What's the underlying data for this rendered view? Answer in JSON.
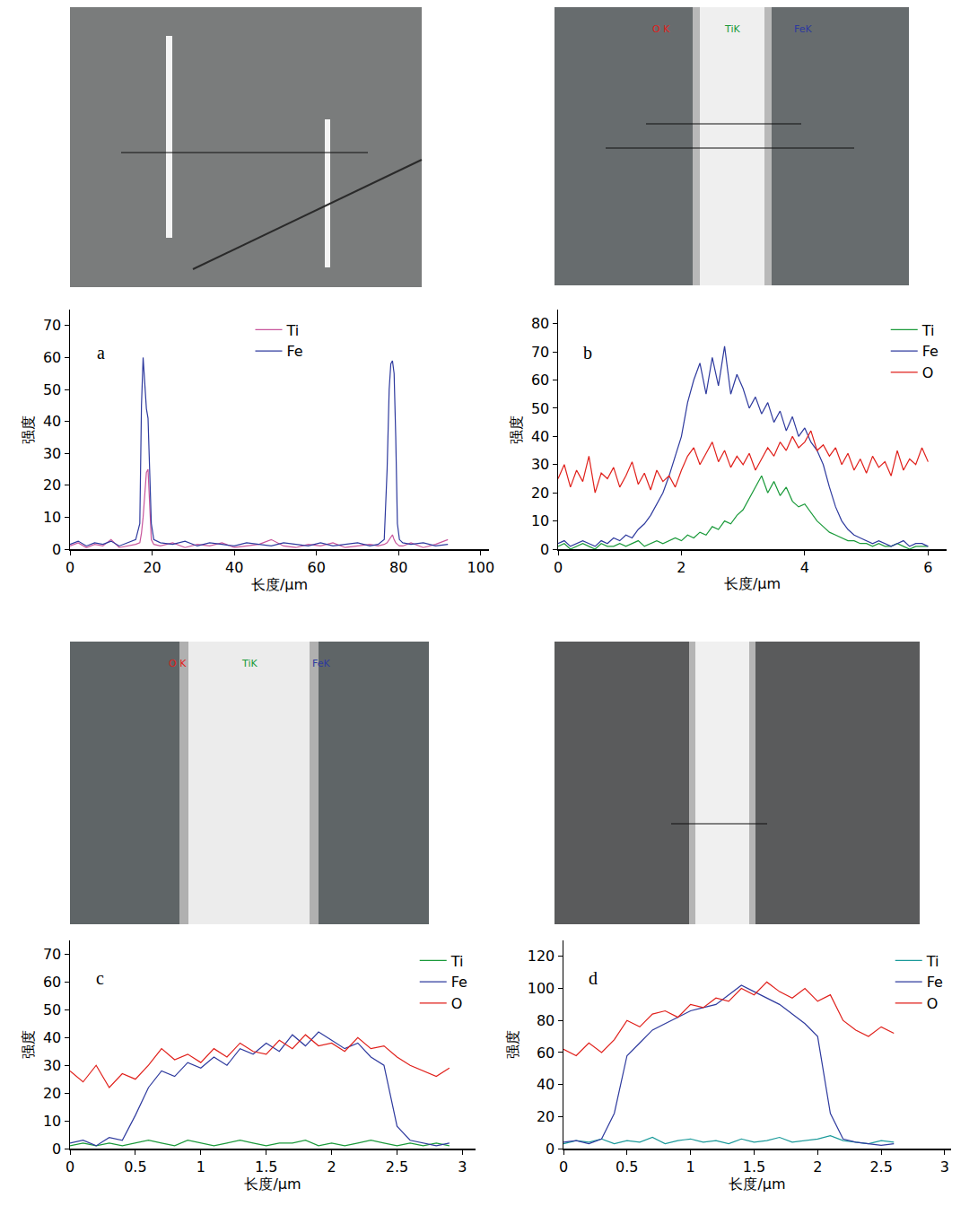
{
  "chart_data": [
    {
      "type": "line",
      "panel": "a",
      "x_label": "长度/μm",
      "y_label": "强度",
      "xlim": [
        0,
        102
      ],
      "xticks": [
        0,
        20,
        40,
        60,
        80,
        100
      ],
      "ylim": [
        0,
        75
      ],
      "yticks": [
        0,
        10,
        20,
        30,
        40,
        50,
        60,
        70
      ],
      "grid": false,
      "legend": "upper center",
      "series": [
        {
          "name": "Ti",
          "color": "#c8559b",
          "x": [
            0,
            2,
            4,
            6,
            8,
            10,
            12,
            14,
            16,
            17,
            17.4,
            17.8,
            18.2,
            18.6,
            19,
            19.4,
            19.8,
            20.4,
            22,
            25,
            28,
            31,
            34,
            37,
            40,
            43,
            46,
            49,
            52,
            55,
            58,
            61,
            64,
            67,
            70,
            73,
            75,
            76.5,
            77.2,
            77.7,
            78.1,
            78.5,
            78.9,
            79.3,
            79.7,
            80.2,
            81,
            83,
            86,
            89,
            92
          ],
          "values": [
            1,
            2,
            0.5,
            1.5,
            1,
            3,
            0.5,
            1,
            1.5,
            2,
            5,
            10,
            18,
            24,
            25,
            12,
            3,
            1.5,
            1,
            2,
            0.5,
            1.5,
            1,
            2,
            0.5,
            1,
            1.5,
            3,
            1,
            0.5,
            1.5,
            1,
            2,
            0.5,
            1,
            1.5,
            1,
            1.5,
            2,
            3,
            4,
            4.5,
            3,
            2,
            1.5,
            1,
            1,
            2,
            0.5,
            1.5,
            3
          ]
        },
        {
          "name": "Fe",
          "color": "#2e3a9e",
          "x": [
            0,
            2,
            4,
            6,
            8,
            10,
            12,
            14,
            16,
            17,
            17.4,
            17.8,
            18.2,
            18.6,
            19,
            19.4,
            19.8,
            20.4,
            22,
            25,
            28,
            31,
            34,
            37,
            40,
            43,
            46,
            49,
            52,
            55,
            58,
            61,
            64,
            67,
            70,
            73,
            75,
            76.5,
            77.2,
            77.7,
            78.1,
            78.5,
            78.9,
            79.3,
            79.7,
            80.2,
            81,
            83,
            86,
            89,
            92
          ],
          "values": [
            1.5,
            2.5,
            1,
            2,
            1.5,
            2.5,
            1,
            2,
            3,
            8,
            45,
            60,
            52,
            44,
            41,
            25,
            8,
            3,
            2,
            1.5,
            2.5,
            1,
            2,
            1.5,
            1,
            2,
            1.5,
            1,
            2,
            1.5,
            1,
            2,
            1,
            1.5,
            2,
            1,
            1.5,
            3,
            25,
            50,
            58,
            59,
            55,
            35,
            8,
            3,
            2,
            1.5,
            2,
            1,
            1.5
          ]
        }
      ]
    },
    {
      "type": "line",
      "panel": "b",
      "x_label": "长度/μm",
      "y_label": "强度",
      "xlim": [
        0,
        6.3
      ],
      "xticks": [
        0,
        2,
        4,
        6
      ],
      "ylim": [
        0,
        85
      ],
      "yticks": [
        0,
        10,
        20,
        30,
        40,
        50,
        60,
        70,
        80
      ],
      "grid": false,
      "legend": "upper right",
      "series": [
        {
          "name": "Ti",
          "color": "#1a9a3a",
          "x": [
            0,
            0.1,
            0.2,
            0.3,
            0.4,
            0.5,
            0.6,
            0.7,
            0.8,
            0.9,
            1,
            1.1,
            1.2,
            1.3,
            1.4,
            1.5,
            1.6,
            1.7,
            1.8,
            1.9,
            2,
            2.1,
            2.2,
            2.3,
            2.4,
            2.5,
            2.6,
            2.7,
            2.8,
            2.9,
            3,
            3.1,
            3.2,
            3.3,
            3.4,
            3.5,
            3.6,
            3.7,
            3.8,
            3.9,
            4,
            4.1,
            4.2,
            4.3,
            4.4,
            4.5,
            4.6,
            4.7,
            4.8,
            4.9,
            5,
            5.1,
            5.2,
            5.3,
            5.4,
            5.5,
            5.6,
            5.7,
            5.8,
            5.9,
            6
          ],
          "values": [
            1,
            2,
            0,
            1,
            2,
            1,
            0,
            2,
            1,
            1,
            2,
            1,
            2,
            3,
            1,
            2,
            3,
            2,
            3,
            4,
            3,
            5,
            4,
            6,
            5,
            8,
            7,
            10,
            9,
            12,
            14,
            18,
            22,
            26,
            20,
            24,
            19,
            22,
            17,
            15,
            16,
            13,
            10,
            8,
            6,
            5,
            4,
            3,
            3,
            2,
            2,
            1,
            2,
            1,
            1,
            2,
            1,
            0,
            1,
            1,
            1
          ]
        },
        {
          "name": "Fe",
          "color": "#2e3a9e",
          "x": [
            0,
            0.1,
            0.2,
            0.3,
            0.4,
            0.5,
            0.6,
            0.7,
            0.8,
            0.9,
            1,
            1.1,
            1.2,
            1.3,
            1.4,
            1.5,
            1.6,
            1.7,
            1.8,
            1.9,
            2,
            2.1,
            2.2,
            2.3,
            2.4,
            2.5,
            2.6,
            2.7,
            2.8,
            2.9,
            3,
            3.1,
            3.2,
            3.3,
            3.4,
            3.5,
            3.6,
            3.7,
            3.8,
            3.9,
            4,
            4.1,
            4.2,
            4.3,
            4.4,
            4.5,
            4.6,
            4.7,
            4.8,
            4.9,
            5,
            5.1,
            5.2,
            5.3,
            5.4,
            5.5,
            5.6,
            5.7,
            5.8,
            5.9,
            6
          ],
          "values": [
            2,
            3,
            1,
            2,
            3,
            2,
            1,
            3,
            2,
            4,
            3,
            5,
            4,
            7,
            9,
            12,
            16,
            20,
            26,
            33,
            40,
            52,
            60,
            66,
            55,
            68,
            58,
            72,
            55,
            62,
            57,
            50,
            54,
            48,
            52,
            45,
            49,
            42,
            47,
            40,
            43,
            38,
            35,
            30,
            22,
            15,
            10,
            7,
            5,
            4,
            3,
            2,
            3,
            2,
            1,
            2,
            3,
            1,
            2,
            2,
            1
          ]
        },
        {
          "name": "O",
          "color": "#e0201b",
          "x": [
            0,
            0.1,
            0.2,
            0.3,
            0.4,
            0.5,
            0.6,
            0.7,
            0.8,
            0.9,
            1,
            1.1,
            1.2,
            1.3,
            1.4,
            1.5,
            1.6,
            1.7,
            1.8,
            1.9,
            2,
            2.1,
            2.2,
            2.3,
            2.4,
            2.5,
            2.6,
            2.7,
            2.8,
            2.9,
            3,
            3.1,
            3.2,
            3.3,
            3.4,
            3.5,
            3.6,
            3.7,
            3.8,
            3.9,
            4,
            4.1,
            4.2,
            4.3,
            4.4,
            4.5,
            4.6,
            4.7,
            4.8,
            4.9,
            5,
            5.1,
            5.2,
            5.3,
            5.4,
            5.5,
            5.6,
            5.7,
            5.8,
            5.9,
            6
          ],
          "values": [
            25,
            30,
            22,
            28,
            24,
            33,
            20,
            27,
            25,
            29,
            22,
            26,
            31,
            23,
            27,
            21,
            28,
            24,
            26,
            22,
            28,
            33,
            36,
            30,
            34,
            38,
            31,
            35,
            29,
            33,
            30,
            34,
            28,
            32,
            36,
            33,
            38,
            35,
            40,
            36,
            38,
            42,
            35,
            37,
            33,
            36,
            30,
            34,
            28,
            32,
            27,
            33,
            29,
            31,
            26,
            35,
            28,
            32,
            30,
            36,
            31
          ]
        }
      ]
    },
    {
      "type": "line",
      "panel": "c",
      "x_label": "长度/μm",
      "y_label": "强度",
      "xlim": [
        0,
        3.1
      ],
      "xticks": [
        0,
        0.5,
        1,
        1.5,
        2,
        2.5,
        3
      ],
      "ylim": [
        0,
        75
      ],
      "yticks": [
        0,
        10,
        20,
        30,
        40,
        50,
        60,
        70
      ],
      "grid": false,
      "legend": "upper right",
      "series": [
        {
          "name": "Ti",
          "color": "#1a9a3a",
          "x": [
            0,
            0.1,
            0.2,
            0.3,
            0.4,
            0.5,
            0.6,
            0.7,
            0.8,
            0.9,
            1,
            1.1,
            1.2,
            1.3,
            1.4,
            1.5,
            1.6,
            1.7,
            1.8,
            1.9,
            2,
            2.1,
            2.2,
            2.3,
            2.4,
            2.5,
            2.6,
            2.7,
            2.8,
            2.9
          ],
          "values": [
            1,
            2,
            1,
            2,
            1,
            2,
            3,
            2,
            1,
            3,
            2,
            1,
            2,
            3,
            2,
            1,
            2,
            2,
            3,
            1,
            2,
            1,
            2,
            3,
            2,
            1,
            2,
            1,
            2,
            1
          ]
        },
        {
          "name": "Fe",
          "color": "#2e3a9e",
          "x": [
            0,
            0.1,
            0.2,
            0.3,
            0.4,
            0.5,
            0.6,
            0.7,
            0.8,
            0.9,
            1,
            1.1,
            1.2,
            1.3,
            1.4,
            1.5,
            1.6,
            1.7,
            1.8,
            1.9,
            2,
            2.1,
            2.2,
            2.3,
            2.4,
            2.5,
            2.6,
            2.7,
            2.8,
            2.9
          ],
          "values": [
            2,
            3,
            1,
            4,
            3,
            12,
            22,
            28,
            26,
            31,
            29,
            33,
            30,
            36,
            34,
            38,
            35,
            41,
            37,
            42,
            39,
            36,
            38,
            33,
            30,
            8,
            3,
            2,
            1,
            2
          ]
        },
        {
          "name": "O",
          "color": "#e0201b",
          "x": [
            0,
            0.1,
            0.2,
            0.3,
            0.4,
            0.5,
            0.6,
            0.7,
            0.8,
            0.9,
            1,
            1.1,
            1.2,
            1.3,
            1.4,
            1.5,
            1.6,
            1.7,
            1.8,
            1.9,
            2,
            2.1,
            2.2,
            2.3,
            2.4,
            2.5,
            2.6,
            2.7,
            2.8,
            2.9
          ],
          "values": [
            28,
            24,
            30,
            22,
            27,
            25,
            30,
            36,
            32,
            34,
            31,
            36,
            33,
            38,
            35,
            34,
            39,
            36,
            41,
            37,
            38,
            35,
            40,
            36,
            37,
            33,
            30,
            28,
            26,
            29
          ]
        }
      ]
    },
    {
      "type": "line",
      "panel": "d",
      "x_label": "长度/μm",
      "y_label": "强度",
      "xlim": [
        0,
        3.05
      ],
      "xticks": [
        0,
        0.5,
        1,
        1.5,
        2,
        2.5,
        3
      ],
      "ylim": [
        0,
        130
      ],
      "yticks": [
        0,
        20,
        40,
        60,
        80,
        100,
        120
      ],
      "grid": false,
      "legend": "upper right",
      "series": [
        {
          "name": "Ti",
          "color": "#1a9a9a",
          "x": [
            0,
            0.1,
            0.2,
            0.3,
            0.4,
            0.5,
            0.6,
            0.7,
            0.8,
            0.9,
            1,
            1.1,
            1.2,
            1.3,
            1.4,
            1.5,
            1.6,
            1.7,
            1.8,
            1.9,
            2,
            2.1,
            2.2,
            2.3,
            2.4,
            2.5,
            2.6
          ],
          "values": [
            3,
            5,
            4,
            6,
            3,
            5,
            4,
            7,
            3,
            5,
            6,
            4,
            5,
            3,
            6,
            4,
            5,
            7,
            4,
            5,
            6,
            8,
            5,
            4,
            3,
            5,
            4
          ]
        },
        {
          "name": "Fe",
          "color": "#2e3a9e",
          "x": [
            0,
            0.1,
            0.2,
            0.3,
            0.4,
            0.5,
            0.6,
            0.7,
            0.8,
            0.9,
            1,
            1.1,
            1.2,
            1.3,
            1.4,
            1.5,
            1.6,
            1.7,
            1.8,
            1.9,
            2,
            2.1,
            2.2,
            2.3,
            2.4,
            2.5,
            2.6
          ],
          "values": [
            4,
            5,
            3,
            6,
            22,
            58,
            66,
            74,
            78,
            82,
            86,
            88,
            90,
            96,
            102,
            98,
            94,
            90,
            84,
            78,
            70,
            22,
            6,
            4,
            3,
            2,
            3
          ]
        },
        {
          "name": "O",
          "color": "#e0201b",
          "x": [
            0,
            0.1,
            0.2,
            0.3,
            0.4,
            0.5,
            0.6,
            0.7,
            0.8,
            0.9,
            1,
            1.1,
            1.2,
            1.3,
            1.4,
            1.5,
            1.6,
            1.7,
            1.8,
            1.9,
            2,
            2.1,
            2.2,
            2.3,
            2.4,
            2.5,
            2.6
          ],
          "values": [
            62,
            58,
            66,
            60,
            68,
            80,
            76,
            84,
            86,
            82,
            90,
            88,
            94,
            92,
            100,
            96,
            104,
            98,
            94,
            100,
            92,
            96,
            80,
            74,
            70,
            76,
            72
          ]
        }
      ]
    }
  ],
  "image_labels": [
    {
      "panel": "b",
      "labels": [
        "O K",
        "TiK",
        "FeK"
      ],
      "colors": [
        "#e0201b",
        "#1a9a3a",
        "#2e3a9e"
      ]
    },
    {
      "panel": "c",
      "labels": [
        "O K",
        "TiK",
        "FeK"
      ],
      "colors": [
        "#e0201b",
        "#1a9a3a",
        "#2e3a9e"
      ]
    }
  ]
}
